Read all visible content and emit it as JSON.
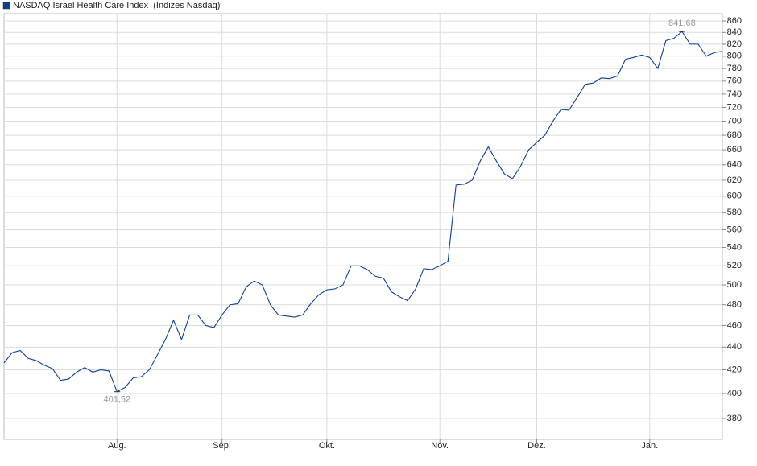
{
  "chart_data": {
    "type": "line",
    "categories": [
      null,
      null,
      null,
      null,
      null,
      null,
      null,
      null,
      null,
      null,
      null,
      null,
      null,
      null,
      "Aug.",
      null,
      null,
      null,
      null,
      null,
      null,
      null,
      null,
      null,
      null,
      null,
      null,
      "Sep.",
      null,
      null,
      null,
      null,
      null,
      null,
      null,
      null,
      null,
      null,
      null,
      null,
      "Okt.",
      null,
      null,
      null,
      null,
      null,
      null,
      null,
      null,
      null,
      null,
      null,
      null,
      null,
      "Nov.",
      null,
      null,
      null,
      null,
      null,
      null,
      null,
      null,
      null,
      null,
      null,
      "Dez.",
      null,
      null,
      null,
      null,
      null,
      null,
      null,
      null,
      null,
      null,
      null,
      null,
      null,
      "Jan.",
      null,
      null,
      null,
      null,
      null,
      null,
      null,
      null,
      null
    ],
    "series": [
      {
        "name": "NASDAQ Israel Health Care Index  (Indizes Nasdaq)",
        "color": "#0b3f94",
        "values": [
          426,
          435,
          437,
          430,
          428,
          424,
          421,
          411,
          412,
          418,
          422,
          418,
          420,
          419,
          401.52,
          405,
          413,
          414,
          420,
          433,
          447,
          465,
          447,
          470,
          470,
          460,
          458,
          470,
          480,
          481,
          498,
          504,
          500,
          480,
          470,
          469,
          468,
          470,
          481,
          490,
          495,
          496,
          500,
          520,
          520,
          516,
          509,
          507,
          493,
          488,
          484,
          496,
          517,
          516,
          520,
          525,
          614,
          615,
          620,
          645,
          664,
          645,
          628,
          622,
          638,
          660,
          670,
          680,
          700,
          717,
          716,
          735,
          755,
          757,
          765,
          764,
          768,
          795,
          798,
          802,
          798,
          780,
          826,
          830,
          841.68,
          820,
          820,
          800,
          806,
          808
        ],
        "value_labels": [
          null,
          null,
          null,
          null,
          null,
          null,
          null,
          null,
          null,
          null,
          null,
          null,
          null,
          null,
          "401,52",
          null,
          null,
          null,
          null,
          null,
          null,
          null,
          null,
          null,
          null,
          null,
          null,
          null,
          null,
          null,
          null,
          null,
          null,
          null,
          null,
          null,
          null,
          null,
          null,
          null,
          null,
          null,
          null,
          null,
          null,
          null,
          null,
          null,
          null,
          null,
          null,
          null,
          null,
          null,
          null,
          null,
          null,
          null,
          null,
          null,
          null,
          null,
          null,
          null,
          null,
          null,
          null,
          null,
          null,
          null,
          null,
          null,
          null,
          null,
          null,
          null,
          null,
          null,
          null,
          null,
          null,
          null,
          null,
          null,
          "841,68",
          null,
          null,
          null,
          null,
          null
        ]
      }
    ],
    "ylim": [
      364,
      873
    ],
    "yticks": [
      380,
      400,
      420,
      440,
      460,
      480,
      500,
      520,
      540,
      560,
      580,
      600,
      620,
      640,
      660,
      680,
      700,
      720,
      740,
      760,
      780,
      800,
      820,
      840,
      860
    ],
    "log_scale": true,
    "grid": true
  }
}
